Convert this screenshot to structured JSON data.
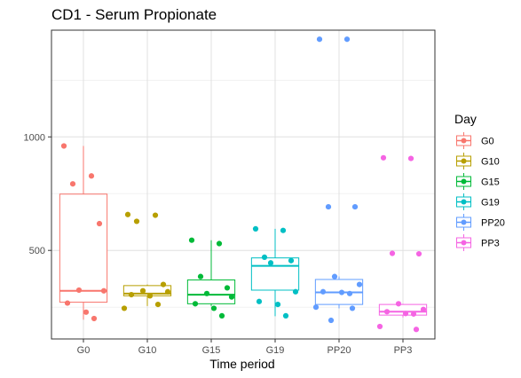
{
  "chart_data": {
    "type": "box",
    "title": "CD1 - Serum Propionate",
    "xlabel": "Time period",
    "ylabel": "",
    "ylim": [
      110,
      1470
    ],
    "yticks": [
      500,
      1000
    ],
    "grid": true,
    "legend": {
      "title": "Day",
      "position": "right"
    },
    "categories": [
      "G0",
      "G10",
      "G15",
      "G19",
      "PP20",
      "PP3"
    ],
    "series": [
      {
        "name": "G0",
        "color": "#F8766D",
        "box": {
          "min": 195,
          "q1": 272,
          "median": 322,
          "q3": 748,
          "max": 960
        },
        "points": [
          960,
          828,
          793,
          618,
          325,
          322,
          268,
          228,
          200
        ]
      },
      {
        "name": "G10",
        "color": "#B79F00",
        "box": {
          "min": 255,
          "q1": 300,
          "median": 310,
          "q3": 345,
          "max": 350
        },
        "points": [
          658,
          655,
          628,
          350,
          322,
          318,
          305,
          300,
          262,
          245
        ]
      },
      {
        "name": "G15",
        "color": "#00BA38",
        "box": {
          "min": 255,
          "q1": 265,
          "median": 305,
          "q3": 370,
          "max": 545
        },
        "points": [
          545,
          530,
          385,
          335,
          310,
          295,
          265,
          245,
          212
        ]
      },
      {
        "name": "G19",
        "color": "#00BFC4",
        "box": {
          "min": 210,
          "q1": 325,
          "median": 432,
          "q3": 467,
          "max": 595
        },
        "points": [
          595,
          588,
          470,
          455,
          445,
          318,
          275,
          262,
          212
        ]
      },
      {
        "name": "PP20",
        "color": "#619CFF",
        "box": {
          "min": 245,
          "q1": 262,
          "median": 315,
          "q3": 372,
          "max": 385
        },
        "points": [
          1430,
          1430,
          692,
          692,
          385,
          350,
          318,
          315,
          310,
          250,
          245,
          192
        ]
      },
      {
        "name": "PP3",
        "color": "#F564E3",
        "box": {
          "min": 205,
          "q1": 215,
          "median": 230,
          "q3": 262,
          "max": 265
        },
        "points": [
          908,
          905,
          487,
          485,
          265,
          240,
          230,
          222,
          220,
          165,
          152
        ]
      }
    ]
  }
}
